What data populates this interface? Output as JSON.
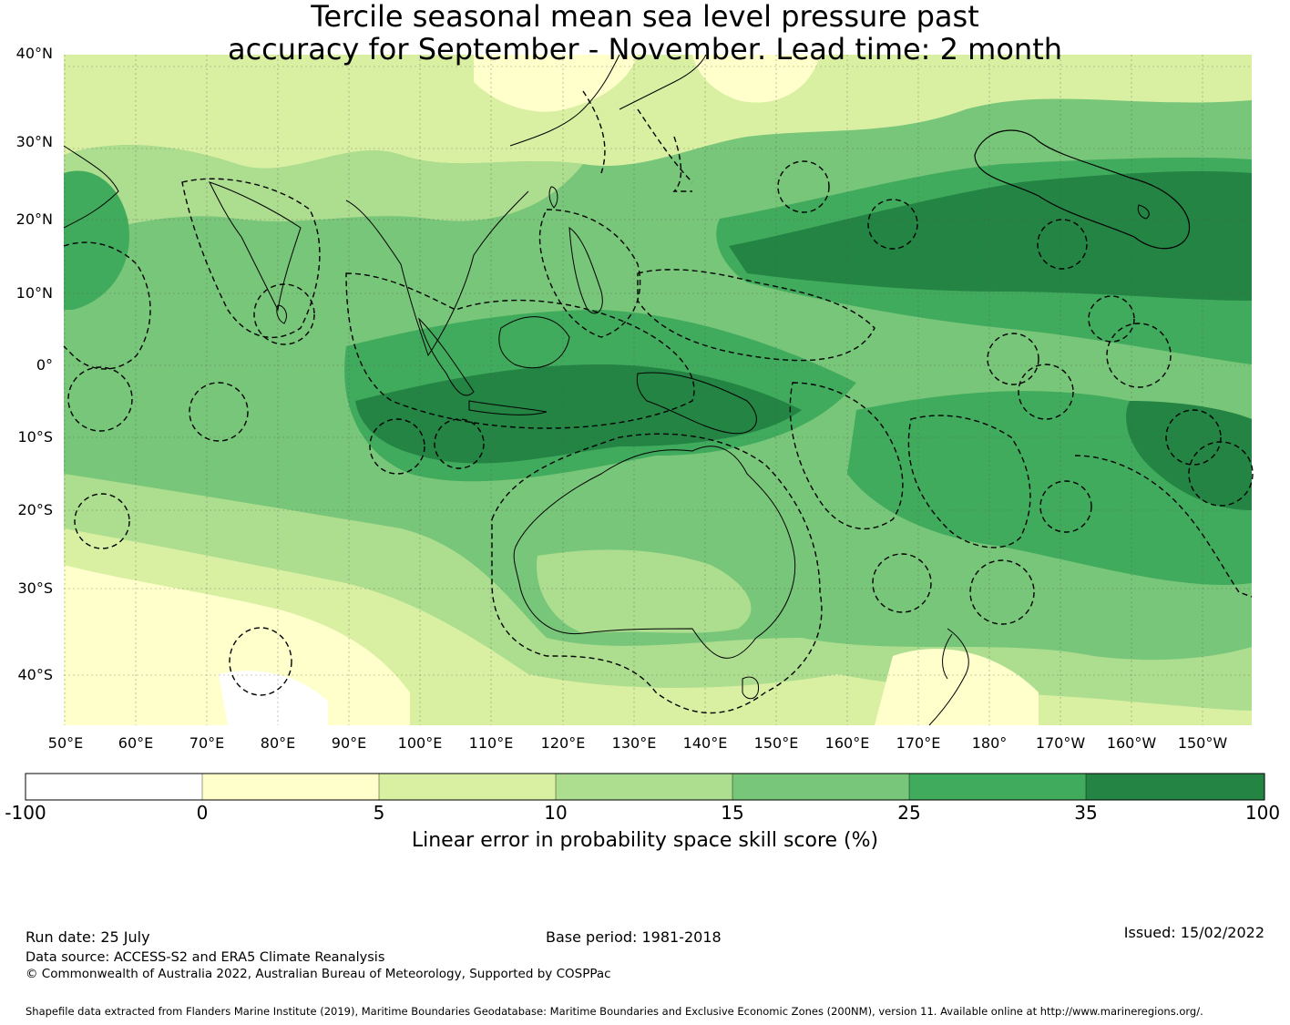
{
  "title": {
    "line1": "Tercile seasonal mean sea level pressure past",
    "line2": "accuracy for September - November. Lead time: 2 month"
  },
  "map": {
    "lat_labels": [
      "40°N",
      "30°N",
      "20°N",
      "10°N",
      "0°",
      "10°S",
      "20°S",
      "30°S",
      "40°S"
    ],
    "lon_labels": [
      "50°E",
      "60°E",
      "70°E",
      "80°E",
      "90°E",
      "100°E",
      "110°E",
      "120°E",
      "130°E",
      "140°E",
      "150°E",
      "160°E",
      "170°E",
      "180°",
      "170°W",
      "160°W",
      "150°W"
    ],
    "ocean_color": "#78c679",
    "graticule": true
  },
  "colorbar": {
    "ticks": [
      "-100",
      "0",
      "5",
      "10",
      "15",
      "25",
      "35",
      "100"
    ],
    "colors": [
      "#ffffff",
      "#ffffcc",
      "#d9f0a3",
      "#addd8e",
      "#78c679",
      "#41ab5d",
      "#238443"
    ],
    "label": "Linear error in probability space skill score (%)"
  },
  "footer": {
    "run_date": "Run date: 25 July",
    "base_period": "Base period: 1981-2018",
    "issued": "Issued: 15/02/2022",
    "data_source": "Data source: ACCESS-S2 and ERA5 Climate Reanalysis",
    "copyright": "© Commonwealth of Australia 2022, Australian Bureau of Meteorology, Supported by COSPPac",
    "shapefile": "Shapefile data extracted from Flanders Marine Institute (2019), Maritime Boundaries Geodatabase: Maritime Boundaries and Exclusive Economic Zones (200NM), version 11. Available online at http://www.marineregions.org/."
  }
}
